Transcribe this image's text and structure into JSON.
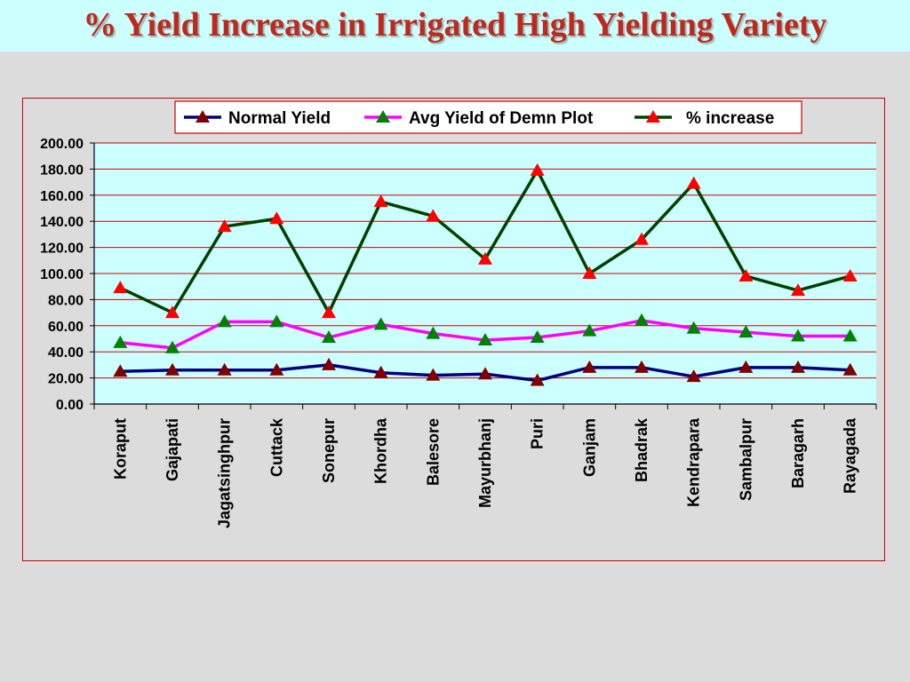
{
  "slide": {
    "title": "% Yield Increase in Irrigated High Yielding Variety"
  },
  "colors": {
    "title": "#c0281c",
    "plot_bg": "#ccffff",
    "gridline": "#cc0000",
    "normal_yield_line": "#000080",
    "normal_yield_marker": "#800000",
    "avg_yield_line": "#ff00ff",
    "avg_yield_marker": "#008000",
    "increase_line": "#004000",
    "increase_marker": "#ff0000"
  },
  "chart_data": {
    "type": "line",
    "title": "",
    "xlabel": "",
    "ylabel": "",
    "ylim": [
      0,
      200
    ],
    "y_ticks": [
      "0.00",
      "20.00",
      "40.00",
      "60.00",
      "80.00",
      "100.00",
      "120.00",
      "140.00",
      "160.00",
      "180.00",
      "200.00"
    ],
    "grid": true,
    "legend_position": "top",
    "categories": [
      "Koraput",
      "Gajapati",
      "Jagatsinghpur",
      "Cuttack",
      "Sonepur",
      "Khordha",
      "Balesore",
      "Mayurbhanj",
      "Puri",
      "Ganjam",
      "Bhadrak",
      "Kendrapara",
      "Sambalpur",
      "Baragarh",
      "Rayagada"
    ],
    "series": [
      {
        "name": "Normal Yield",
        "marker": "triangle",
        "values": [
          25,
          26,
          26,
          26,
          30,
          24,
          22,
          23,
          18,
          28,
          28,
          21,
          28,
          28,
          26
        ]
      },
      {
        "name": "Avg Yield of Demn Plot",
        "marker": "triangle",
        "values": [
          47,
          43,
          63,
          63,
          51,
          61,
          54,
          49,
          51,
          56,
          64,
          58,
          55,
          52,
          52
        ]
      },
      {
        "name": "% increase",
        "marker": "triangle",
        "values": [
          89,
          70,
          136,
          142,
          70,
          155,
          144,
          111,
          179,
          100,
          126,
          169,
          98,
          87,
          98
        ]
      }
    ]
  }
}
